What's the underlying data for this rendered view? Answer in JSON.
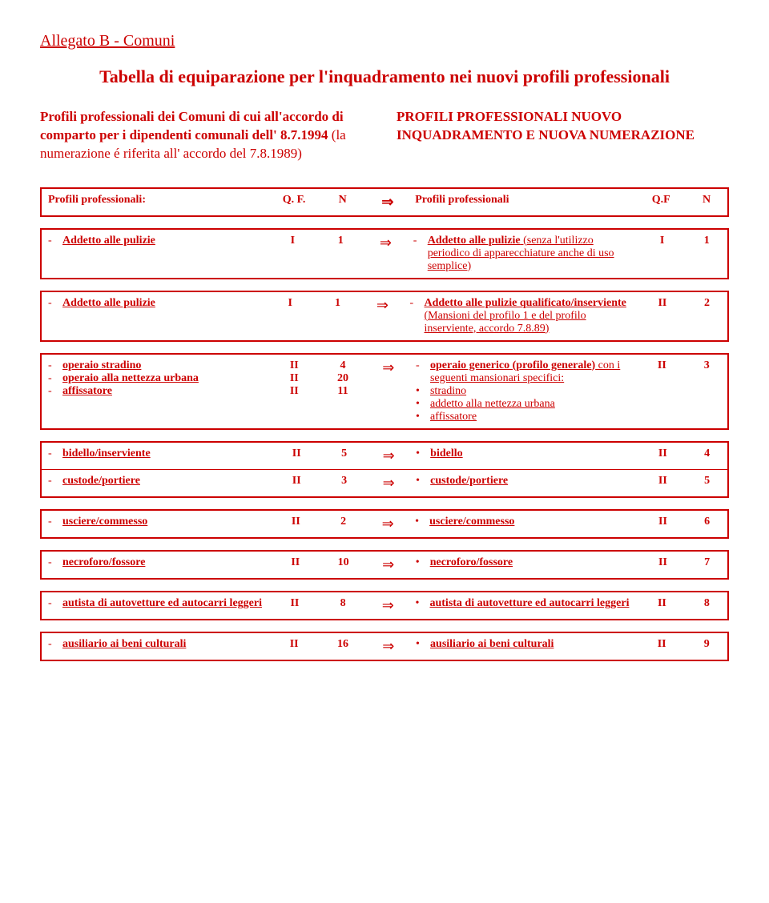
{
  "page_title": "Allegato B - Comuni",
  "main_heading": "Tabella di equiparazione per l'inquadramento nei nuovi profili professionali",
  "intro": {
    "left_bold": "Profili professionali dei Comuni di cui all'accordo di comparto per i dipendenti comunali dell' 8.7.1994",
    "left_normal": " (la numerazione é riferita all' accordo del 7.8.1989)",
    "right": "PROFILI PROFESSIONALI NUOVO INQUADRAMENTO E NUOVA NUMERAZIONE"
  },
  "header_row": {
    "left": "Profili professionali:",
    "qf": "Q. F.",
    "n": "N",
    "arrow": "⇒",
    "right": "Profili professionali",
    "qf2": "Q.F",
    "n2": "N"
  },
  "blocks": [
    {
      "rows": [
        {
          "left_items": [
            {
              "marker": "-",
              "text": "Addetto alle pulizie",
              "u": true,
              "bold": true
            }
          ],
          "qf": "I",
          "n": "1",
          "arrow": "⇒",
          "right_items": [
            {
              "marker": "-",
              "text": "Addetto alle pulizie",
              "u": true,
              "bold": true,
              "tail": " (senza l'utilizzo periodico di apparecchiature anche di uso semplice)",
              "tail_u": true
            }
          ],
          "qf2": "I",
          "n2": "1"
        }
      ]
    },
    {
      "rows": [
        {
          "left_items": [
            {
              "marker": "-",
              "text": "Addetto alle pulizie",
              "u": true,
              "bold": true
            }
          ],
          "qf": "I",
          "n": "1",
          "arrow": "⇒",
          "right_items": [
            {
              "marker": "-",
              "text": "Addetto alle pulizie qualificato/inserviente",
              "u": true,
              "bold": true,
              "tail": " (Mansioni del profilo 1 e del profilo inserviente, accordo 7.8.89)",
              "tail_u": true
            }
          ],
          "qf2": "II",
          "n2": "2"
        }
      ]
    },
    {
      "rows": [
        {
          "left_items": [
            {
              "marker": "-",
              "text": "operaio stradino",
              "u": true,
              "bold": true,
              "qf": "II",
              "n": "4"
            },
            {
              "marker": "-",
              "text": "operaio alla nettezza urbana",
              "u": true,
              "bold": true,
              "qf": "II",
              "n": "20"
            },
            {
              "marker": "-",
              "text": "affissatore",
              "u": true,
              "bold": true,
              "qf": "II",
              "n": "11"
            }
          ],
          "multi_left": true,
          "arrow": "⇒",
          "right_items": [
            {
              "marker": "-",
              "text": "operaio generico (profilo generale)",
              "u": true,
              "bold": true,
              "tail": " con i seguenti mansionari specifici:",
              "tail_u": true
            },
            {
              "marker": "•",
              "text": "stradino",
              "u": true
            },
            {
              "marker": "•",
              "text": "addetto alla nettezza urbana",
              "u": true
            },
            {
              "marker": "•",
              "text": "affissatore",
              "u": true
            }
          ],
          "qf2": "II",
          "n2": "3"
        }
      ]
    },
    {
      "rows": [
        {
          "left_items": [
            {
              "marker": "-",
              "text": "bidello/inserviente",
              "u": true,
              "bold": true
            }
          ],
          "qf": "II",
          "n": "5",
          "arrow": "⇒",
          "right_items": [
            {
              "marker": "•",
              "text": "bidello",
              "u": true,
              "bold": true
            }
          ],
          "qf2": "II",
          "n2": "4"
        },
        {
          "divider": true,
          "left_items": [
            {
              "marker": "-",
              "text": "custode/portiere",
              "u": true,
              "bold": true
            }
          ],
          "qf": "II",
          "n": "3",
          "arrow": "⇒",
          "right_items": [
            {
              "marker": "•",
              "text": "custode/portiere",
              "u": true,
              "bold": true
            }
          ],
          "qf2": "II",
          "n2": "5"
        }
      ]
    },
    {
      "rows": [
        {
          "left_items": [
            {
              "marker": "-",
              "text": "usciere/commesso",
              "u": true,
              "bold": true
            }
          ],
          "qf": "II",
          "n": "2",
          "arrow": "⇒",
          "right_items": [
            {
              "marker": "•",
              "text": "usciere/commesso",
              "u": true,
              "bold": true
            }
          ],
          "qf2": "II",
          "n2": "6"
        }
      ]
    },
    {
      "rows": [
        {
          "left_items": [
            {
              "marker": "-",
              "text": "necroforo/fossore",
              "u": true,
              "bold": true
            }
          ],
          "qf": "II",
          "n": "10",
          "arrow": "⇒",
          "right_items": [
            {
              "marker": "•",
              "text": "necroforo/fossore",
              "u": true,
              "bold": true
            }
          ],
          "qf2": "II",
          "n2": "7"
        }
      ]
    },
    {
      "rows": [
        {
          "left_items": [
            {
              "marker": "-",
              "text": "autista di autovetture ed autocarri leggeri",
              "u": true,
              "bold": true
            }
          ],
          "qf": "II",
          "n": "8",
          "arrow": "⇒",
          "right_items": [
            {
              "marker": "•",
              "text": "autista di autovetture ed autocarri leggeri",
              "u": true,
              "bold": true
            }
          ],
          "qf2": "II",
          "n2": "8"
        }
      ]
    },
    {
      "rows": [
        {
          "left_items": [
            {
              "marker": "-",
              "text": "ausiliario ai beni culturali",
              "u": true,
              "bold": true
            }
          ],
          "qf": "II",
          "n": "16",
          "arrow": "⇒",
          "right_items": [
            {
              "marker": "•",
              "text": "ausiliario ai beni culturali",
              "u": true,
              "bold": true
            }
          ],
          "qf2": "II",
          "n2": "9"
        }
      ]
    }
  ],
  "colors": {
    "text": "#cc0000",
    "border": "#cc0000",
    "background": "#ffffff"
  }
}
